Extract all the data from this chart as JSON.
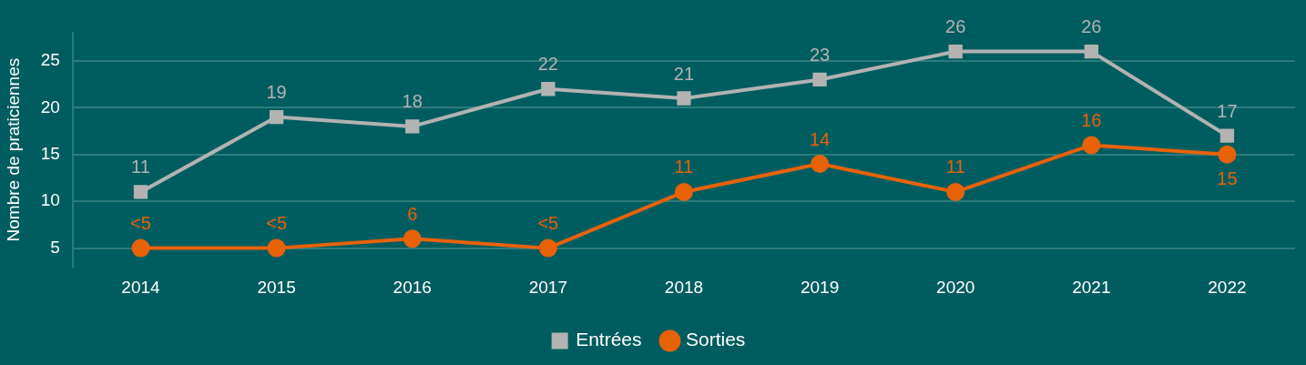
{
  "chart_data": {
    "type": "line",
    "ylabel": "Nombre de praticiennes",
    "categories": [
      "2014",
      "2015",
      "2016",
      "2017",
      "2018",
      "2019",
      "2020",
      "2021",
      "2022"
    ],
    "series": [
      {
        "name": "Entrées",
        "color": "#b3b3b3",
        "marker": "square",
        "values": [
          11,
          19,
          18,
          22,
          21,
          23,
          26,
          26,
          17
        ],
        "value_labels": [
          "11",
          "19",
          "18",
          "22",
          "21",
          "23",
          "26",
          "26",
          "17"
        ]
      },
      {
        "name": "Sorties",
        "color": "#e8620a",
        "marker": "circle",
        "values": [
          5,
          5,
          6,
          5,
          11,
          14,
          11,
          16,
          15
        ],
        "value_labels": [
          "<5",
          "<5",
          "6",
          "<5",
          "11",
          "14",
          "11",
          "16",
          "15"
        ]
      }
    ],
    "ylim": [
      3,
      28
    ],
    "yticks": [
      5,
      10,
      15,
      20,
      25
    ],
    "grid": "y",
    "legend": "bottom",
    "line_style": "solid"
  }
}
